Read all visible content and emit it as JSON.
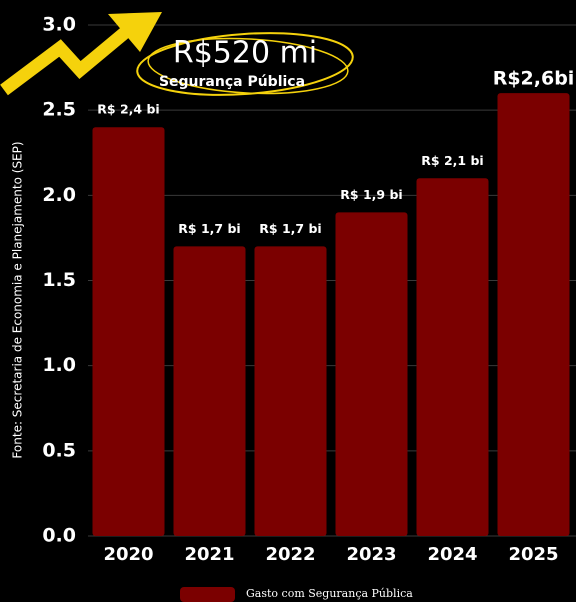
{
  "chart_data": {
    "type": "bar",
    "categories": [
      "2020",
      "2021",
      "2022",
      "2023",
      "2024",
      "2025"
    ],
    "values": [
      2.4,
      1.7,
      1.7,
      1.9,
      2.1,
      2.6
    ],
    "value_labels": [
      "R$ 2,4 bi",
      "R$ 1,7 bi",
      "R$ 1,7 bi",
      "R$ 1,9 bi",
      "R$ 2,1 bi",
      "R$2,6bi"
    ],
    "color": "#7b0000",
    "ylim": [
      0,
      3
    ],
    "yticks": [
      {
        "value": 0,
        "label": "0.0"
      },
      0.5,
      {
        "value": 1,
        "label": "1.0"
      },
      1.5,
      {
        "value": 2,
        "label": "2.0"
      },
      2.5,
      {
        "value": 3,
        "label": "3.0"
      }
    ],
    "grid": true,
    "ylabel": "Fonte: Secretaria de Economia e Planejamento (SEP)",
    "legend": "Gasto com Segurança Pública",
    "annotation": "R$520 mi",
    "annotation_subtitle": "Segurança Pública"
  }
}
